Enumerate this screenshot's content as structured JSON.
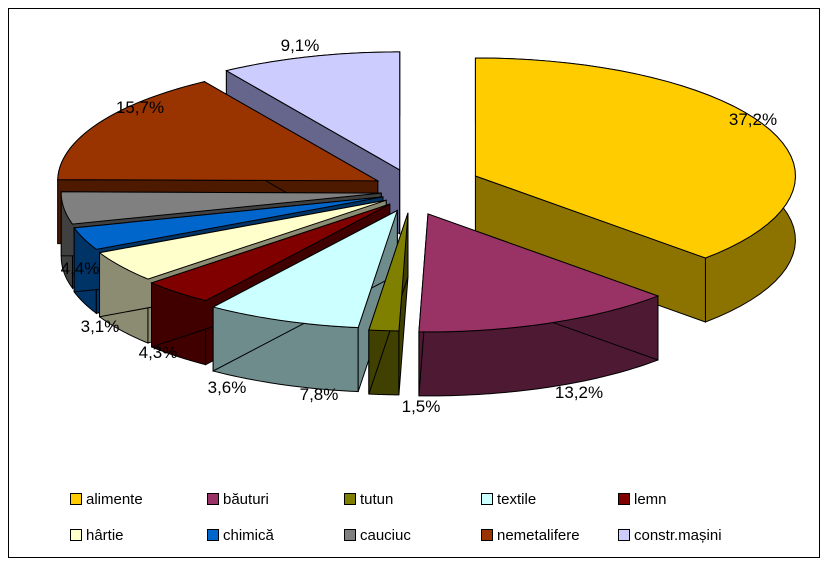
{
  "chart_data": {
    "type": "pie",
    "style": "3d-exploded",
    "legend_position": "bottom",
    "slices": [
      {
        "name": "alimente",
        "value": 37.2,
        "label": "37,2%",
        "color": "#FFCC00",
        "side": "#8C7300"
      },
      {
        "name": "băuturi",
        "value": 13.2,
        "label": "13,2%",
        "color": "#993366",
        "side": "#4D1933"
      },
      {
        "name": "tutun",
        "value": 1.5,
        "label": "1,5%",
        "color": "#808000",
        "side": "#404000"
      },
      {
        "name": "textile",
        "value": 7.8,
        "label": "7,8%",
        "color": "#CCFFFF",
        "side": "#6E8C8C"
      },
      {
        "name": "lemn",
        "value": 3.6,
        "label": "3,6%",
        "color": "#800000",
        "side": "#400000"
      },
      {
        "name": "hârtie",
        "value": 4.3,
        "label": "4,3%",
        "color": "#FFFFCC",
        "side": "#8C8C73"
      },
      {
        "name": "chimică",
        "value": 3.1,
        "label": "3,1%",
        "color": "#0066CC",
        "side": "#003366"
      },
      {
        "name": "cauciuc",
        "value": 4.4,
        "label": "4,4%",
        "color": "#808080",
        "side": "#404040"
      },
      {
        "name": "nemetalifere",
        "value": 15.7,
        "label": "15,7%",
        "color": "#993300",
        "side": "#4D1A00"
      },
      {
        "name": "constr.mașini",
        "value": 9.1,
        "label": "9,1%",
        "color": "#CCCCFF",
        "side": "#66668C"
      }
    ]
  },
  "legend": {
    "rows": [
      [
        0,
        1,
        2,
        3,
        4
      ],
      [
        5,
        6,
        7,
        8,
        9
      ]
    ]
  }
}
